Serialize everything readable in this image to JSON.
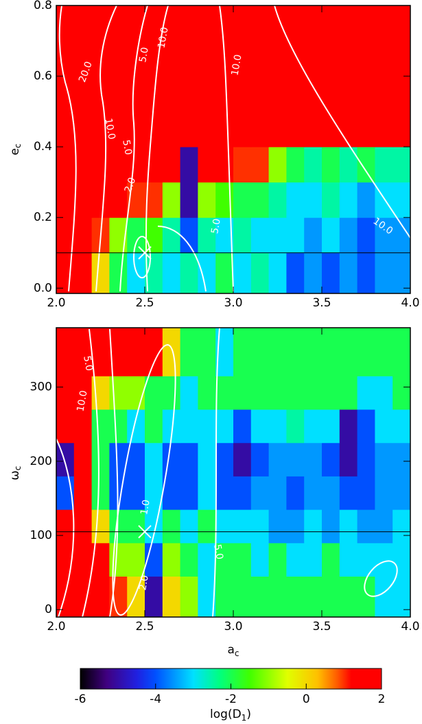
{
  "chart_data": [
    {
      "type": "heatmap",
      "y_label": [
        "e",
        "c"
      ],
      "x": [
        2.05,
        2.15,
        2.25,
        2.35,
        2.45,
        2.55,
        2.65,
        2.75,
        2.85,
        2.95,
        3.05,
        3.15,
        3.25,
        3.35,
        3.45,
        3.55,
        3.65,
        3.75,
        3.85,
        3.95
      ],
      "y": [
        0.05,
        0.15,
        0.25,
        0.35,
        0.45,
        0.55,
        0.65,
        0.75
      ],
      "z": [
        [
          2,
          2,
          0,
          -2,
          -3,
          -2.5,
          -3,
          -2.5,
          -3,
          -2,
          -3,
          -2.5,
          -3,
          -4,
          -3.5,
          -4,
          -3.5,
          -4,
          -3.5,
          -3.5
        ],
        [
          2,
          2,
          1,
          -1,
          -2,
          -1.5,
          -2.5,
          -4,
          -2.5,
          -3,
          -2.5,
          -3,
          -3,
          -3,
          -3.5,
          -3,
          -3.5,
          -4,
          -3.5,
          -3.5
        ],
        [
          2,
          2,
          2,
          1.5,
          1,
          1,
          -1,
          -5,
          -1,
          -1.5,
          -2,
          -2,
          -2.5,
          -3,
          -3,
          -2.5,
          -3,
          -3.5,
          -3,
          -3
        ],
        [
          2,
          2,
          2,
          2,
          2,
          2,
          2,
          -5,
          2,
          2,
          1,
          1,
          -1,
          -2,
          -2.5,
          -2,
          -2.5,
          -2,
          -2.5,
          -2.5
        ],
        [
          2,
          2,
          2,
          2,
          2,
          2,
          2,
          2,
          2,
          2,
          2,
          2,
          2,
          2,
          2,
          2,
          2,
          2,
          2,
          2
        ],
        [
          2,
          2,
          2,
          2,
          2,
          2,
          2,
          2,
          2,
          2,
          2,
          2,
          2,
          2,
          2,
          2,
          2,
          2,
          2,
          2
        ],
        [
          2,
          2,
          2,
          2,
          2,
          2,
          2,
          2,
          2,
          2,
          2,
          2,
          2,
          2,
          2,
          2,
          2,
          2,
          2,
          2
        ],
        [
          2,
          2,
          2,
          2,
          2,
          2,
          2,
          2,
          2,
          2,
          2,
          2,
          2,
          2,
          2,
          2,
          2,
          2,
          2,
          2
        ]
      ],
      "xlim": [
        2.0,
        4.0
      ],
      "ylim": [
        -0.015,
        0.8
      ],
      "xticks": [
        {
          "value": 2,
          "label": "2.0"
        },
        {
          "value": 2.5,
          "label": "2.5"
        },
        {
          "value": 3,
          "label": "3.0"
        },
        {
          "value": 3.5,
          "label": "3.5"
        },
        {
          "value": 4,
          "label": "4.0"
        }
      ],
      "yticks": [
        {
          "value": 0,
          "label": "0.0"
        },
        0.2,
        0.4,
        0.6,
        0.8
      ],
      "reference_line": 0.1,
      "marker": {
        "x": 2.5,
        "y": 0.1
      },
      "contour_labels": [
        "20.0",
        "10.0",
        "5.0",
        "2.0",
        "5.0",
        "10.0",
        "10.0",
        "10.0",
        "5.0"
      ]
    },
    {
      "type": "heatmap",
      "y_label": [
        "ω",
        "c"
      ],
      "x_label": [
        "a",
        "c"
      ],
      "x": [
        2.05,
        2.15,
        2.25,
        2.35,
        2.45,
        2.55,
        2.65,
        2.75,
        2.85,
        2.95,
        3.05,
        3.15,
        3.25,
        3.35,
        3.45,
        3.55,
        3.65,
        3.75,
        3.85,
        3.95
      ],
      "y": [
        22.5,
        67.5,
        112.5,
        157.5,
        202.5,
        247.5,
        292.5,
        337.5
      ],
      "z": [
        [
          2,
          2,
          2,
          1,
          0,
          -5,
          0,
          -1,
          -3,
          -2,
          -2,
          -2,
          -2,
          -2,
          -2,
          -2,
          -2,
          -2,
          -3,
          -3
        ],
        [
          2,
          2,
          2,
          -1,
          -1,
          -4,
          -1,
          -2,
          -3,
          -2,
          -2,
          -3,
          -2,
          -3,
          -3,
          -2,
          -3,
          -3,
          -3,
          -3
        ],
        [
          2,
          2,
          0,
          -2,
          -2,
          -3,
          -2,
          -3,
          -2,
          -3,
          -3,
          -3,
          -3.5,
          -3.5,
          -3,
          -3.5,
          -3,
          -3.5,
          -3.5,
          -3
        ],
        [
          -4,
          2,
          -2,
          -4,
          -4,
          -3,
          -4,
          -4,
          -3,
          -4,
          -4,
          -3.5,
          -3.5,
          -4,
          -3.5,
          -3.5,
          -4,
          -4,
          -3.5,
          -3.5
        ],
        [
          -5,
          2,
          -2,
          -4,
          -4,
          -3,
          -4,
          -4,
          -3,
          -4,
          -5,
          -4,
          -3.5,
          -3.5,
          -3.5,
          -4,
          -5,
          -4,
          -3.5,
          -3.5
        ],
        [
          2,
          2,
          -2,
          -2,
          -3,
          -2,
          -3,
          -3,
          -3,
          -3,
          -4,
          -3,
          -3,
          -2.5,
          -3,
          -3,
          -5,
          -4,
          -3,
          -3
        ],
        [
          2,
          2,
          0,
          -1,
          -1,
          -2,
          -2,
          -3,
          -2,
          -2,
          -2,
          -2,
          -2,
          -2,
          -2,
          -2,
          -2,
          -3,
          -3,
          -2
        ],
        [
          2,
          2,
          2,
          2,
          2,
          2,
          0,
          -2,
          -2,
          -3,
          -2,
          -2,
          -2,
          -2,
          -2,
          -2,
          -2,
          -2,
          -2,
          -2
        ]
      ],
      "xlim": [
        2.0,
        4.0
      ],
      "ylim": [
        -10,
        380
      ],
      "xticks": [
        {
          "value": 2,
          "label": "2.0"
        },
        {
          "value": 2.5,
          "label": "2.5"
        },
        {
          "value": 3,
          "label": "3.0"
        },
        {
          "value": 3.5,
          "label": "3.5"
        },
        {
          "value": 4,
          "label": "4.0"
        }
      ],
      "yticks": [
        0,
        100,
        200,
        300
      ],
      "reference_line": 105,
      "marker": {
        "x": 2.5,
        "y": 105
      },
      "contour_labels": [
        "10.0",
        "5.0",
        "1.0",
        "2.0",
        "5.0"
      ]
    }
  ],
  "colorbar": {
    "label": [
      "log(D",
      "1",
      ")"
    ],
    "zlim": [
      -6,
      2
    ],
    "ticks": [
      -6,
      -4,
      -2,
      0,
      2
    ],
    "colormap": [
      {
        "value": -6,
        "color": "#000000"
      },
      {
        "value": -5.3,
        "color": "#400080"
      },
      {
        "value": -4.5,
        "color": "#2020e0"
      },
      {
        "value": -4,
        "color": "#0050ff"
      },
      {
        "value": -3,
        "color": "#00e0ff"
      },
      {
        "value": -2.3,
        "color": "#00ff80"
      },
      {
        "value": -1.5,
        "color": "#40ff00"
      },
      {
        "value": -0.5,
        "color": "#e0ff00"
      },
      {
        "value": 0.3,
        "color": "#ffc000"
      },
      {
        "value": 0.8,
        "color": "#ff6000"
      },
      {
        "value": 1.2,
        "color": "#ff0000"
      },
      {
        "value": 2,
        "color": "#ff0000"
      }
    ]
  }
}
